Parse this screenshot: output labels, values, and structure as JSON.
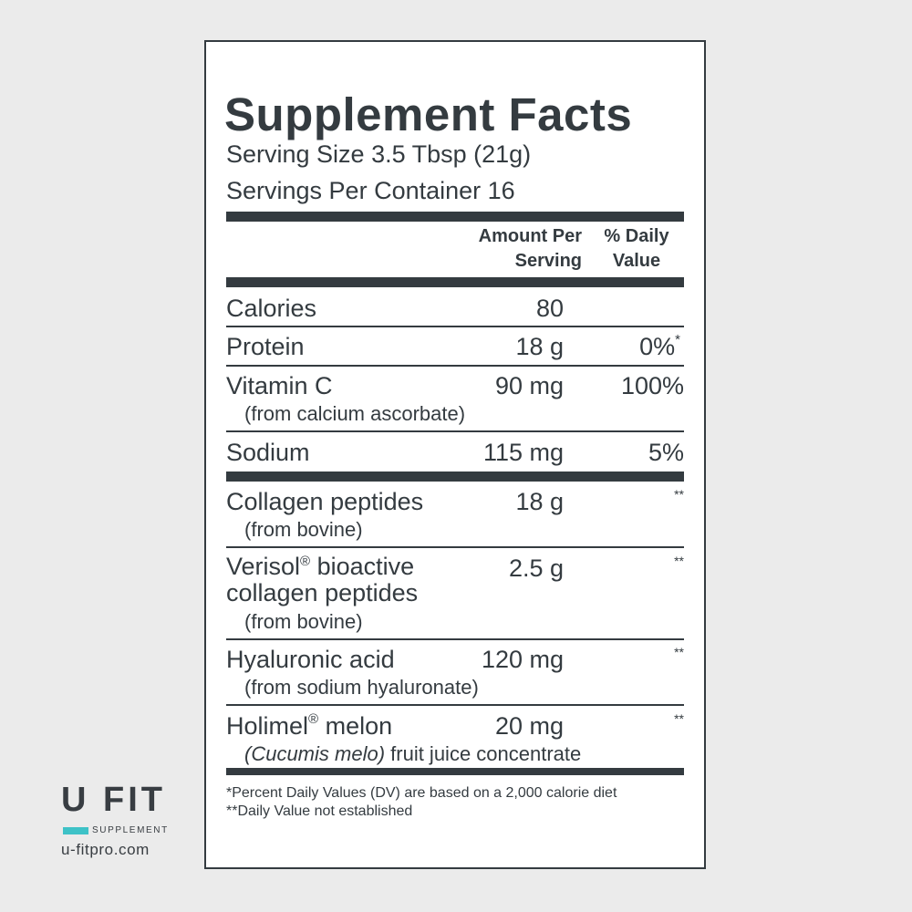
{
  "label": {
    "title": "Supplement Facts",
    "serving_size": "Serving Size 3.5 Tbsp (21g)",
    "servings_per_container": "Servings Per Container 16",
    "col_amount_line1": "Amount Per",
    "col_amount_line2": "Serving",
    "col_dv_line1": "% Daily",
    "col_dv_line2": "Value",
    "rows": [
      {
        "name": "Calories",
        "amount": "80",
        "dv": ""
      },
      {
        "name": "Protein",
        "amount": "18 g",
        "dv": "0%",
        "dv_mark": "*"
      },
      {
        "name": "Vitamin C",
        "sub": "(from calcium ascorbate)",
        "amount": "90 mg",
        "dv": "100%"
      },
      {
        "name": "Sodium",
        "amount": "115 mg",
        "dv": "5%"
      },
      {
        "name": "Collagen peptides",
        "sub": "(from bovine)",
        "amount": "18 g",
        "dv_mark": "**"
      },
      {
        "name": "Verisol",
        "reg": "®",
        "name_rest": " bioactive",
        "name_line2": "collagen peptides",
        "sub": "(from bovine)",
        "amount": "2.5 g",
        "dv_mark": "**"
      },
      {
        "name": "Hyaluronic acid",
        "sub": "(from sodium hyaluronate)",
        "amount": "120 mg",
        "dv_mark": "**"
      },
      {
        "name": "Holimel",
        "reg": "®",
        "name_rest": " melon",
        "sub_italic": "(Cucumis melo)",
        "sub": " fruit juice concentrate",
        "amount": "20 mg",
        "dv_mark": "**"
      }
    ],
    "footnote_1": "*Percent Daily Values (DV) are based on a 2,000 calorie diet",
    "footnote_2": "**Daily Value not established"
  },
  "brand": {
    "logo": "U FIT",
    "tagline": "SUPPLEMENT",
    "website": "u-fitpro.com",
    "accent_color": "#3ec2c7"
  }
}
